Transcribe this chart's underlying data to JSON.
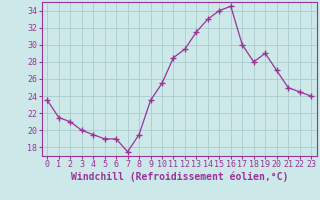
{
  "x": [
    0,
    1,
    2,
    3,
    4,
    5,
    6,
    7,
    8,
    9,
    10,
    11,
    12,
    13,
    14,
    15,
    16,
    17,
    18,
    19,
    20,
    21,
    22,
    23
  ],
  "y": [
    23.5,
    21.5,
    21.0,
    20.0,
    19.5,
    19.0,
    19.0,
    17.5,
    19.5,
    23.5,
    25.5,
    28.5,
    29.5,
    31.5,
    33.0,
    34.0,
    34.5,
    30.0,
    28.0,
    29.0,
    27.0,
    25.0,
    24.5,
    24.0
  ],
  "line_color": "#993399",
  "marker": "+",
  "marker_size": 4,
  "background_color": "#cce8e8",
  "grid_color": "#aacccc",
  "xlabel": "Windchill (Refroidissement éolien,°C)",
  "xlabel_fontsize": 7,
  "xtick_labels": [
    "0",
    "1",
    "2",
    "3",
    "4",
    "5",
    "6",
    "7",
    "8",
    "9",
    "10",
    "11",
    "12",
    "13",
    "14",
    "15",
    "16",
    "17",
    "18",
    "19",
    "20",
    "21",
    "22",
    "23"
  ],
  "ytick_values": [
    18,
    20,
    22,
    24,
    26,
    28,
    30,
    32,
    34
  ],
  "ylim": [
    17,
    35
  ],
  "xlim": [
    -0.5,
    23.5
  ],
  "tick_color": "#993399",
  "tick_fontsize": 6,
  "axis_color": "#993399",
  "spine_color": "#993399"
}
